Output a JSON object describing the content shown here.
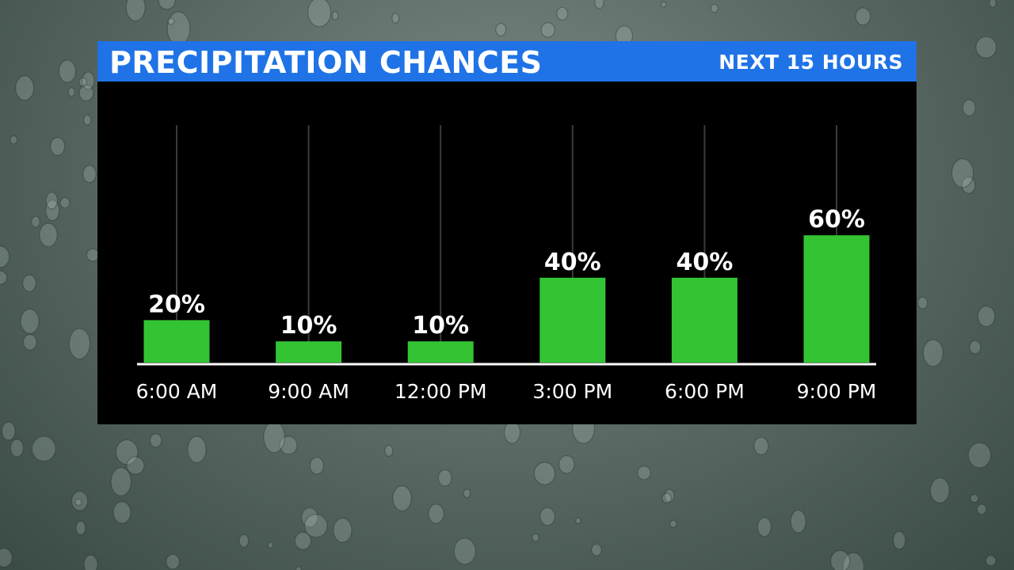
{
  "header": {
    "title": "PRECIPITATION CHANCES",
    "subtitle": "NEXT 15 HOURS"
  },
  "colors": {
    "bar": "#33c433",
    "header": "#1f73e6",
    "panel": "#000000",
    "gridline": "#3a3a3a",
    "text": "#ffffff"
  },
  "chart_data": {
    "type": "bar",
    "title": "PRECIPITATION CHANCES",
    "subtitle": "NEXT 15 HOURS",
    "categories": [
      "6:00 AM",
      "9:00 AM",
      "12:00 PM",
      "3:00 PM",
      "6:00 PM",
      "9:00 PM"
    ],
    "values": [
      20,
      10,
      10,
      40,
      40,
      60
    ],
    "value_labels": [
      "20%",
      "10%",
      "10%",
      "40%",
      "40%",
      "60%"
    ],
    "ylim": [
      0,
      110
    ],
    "xlabel": "",
    "ylabel": "",
    "grid": "vertical",
    "legend": "none"
  }
}
